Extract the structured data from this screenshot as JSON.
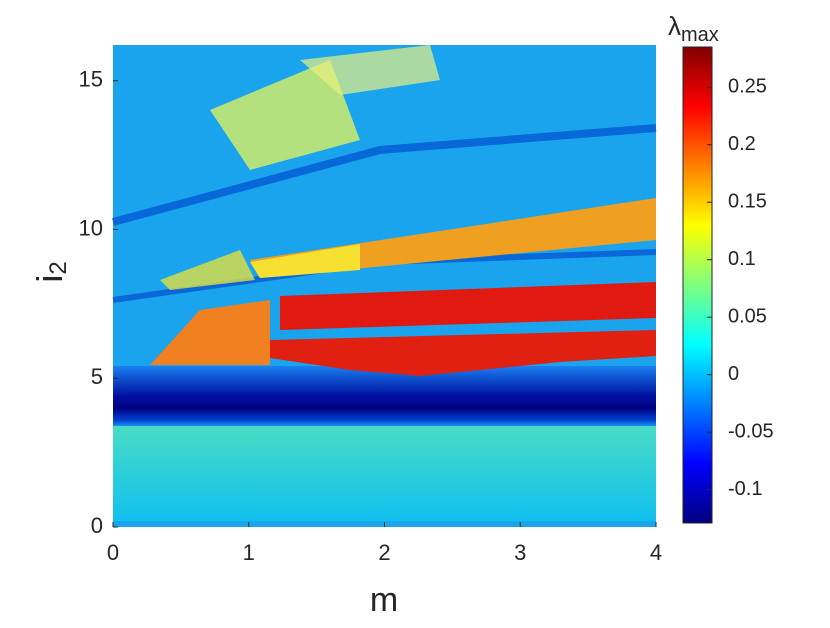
{
  "chart_data": {
    "type": "heatmap",
    "x_label": "m",
    "y_label": {
      "symbol": "i",
      "subscript": "2"
    },
    "colorbar_label": {
      "symbol": "λ",
      "subscript": "max"
    },
    "xlim": [
      0,
      4
    ],
    "xticks": [
      0,
      1,
      2,
      3,
      4
    ],
    "ylim": [
      0,
      16.2
    ],
    "yticks": [
      0,
      5,
      10,
      15
    ],
    "clim": [
      -0.129,
      0.285
    ],
    "cticks": [
      -0.1,
      -0.05,
      0,
      0.05,
      0.1,
      0.15,
      0.2,
      0.25
    ],
    "colormap": [
      "#000080",
      "#0000ff",
      "#0080ff",
      "#00ffff",
      "#80ff80",
      "#ffff00",
      "#ff8000",
      "#ff0000",
      "#800000"
    ]
  }
}
